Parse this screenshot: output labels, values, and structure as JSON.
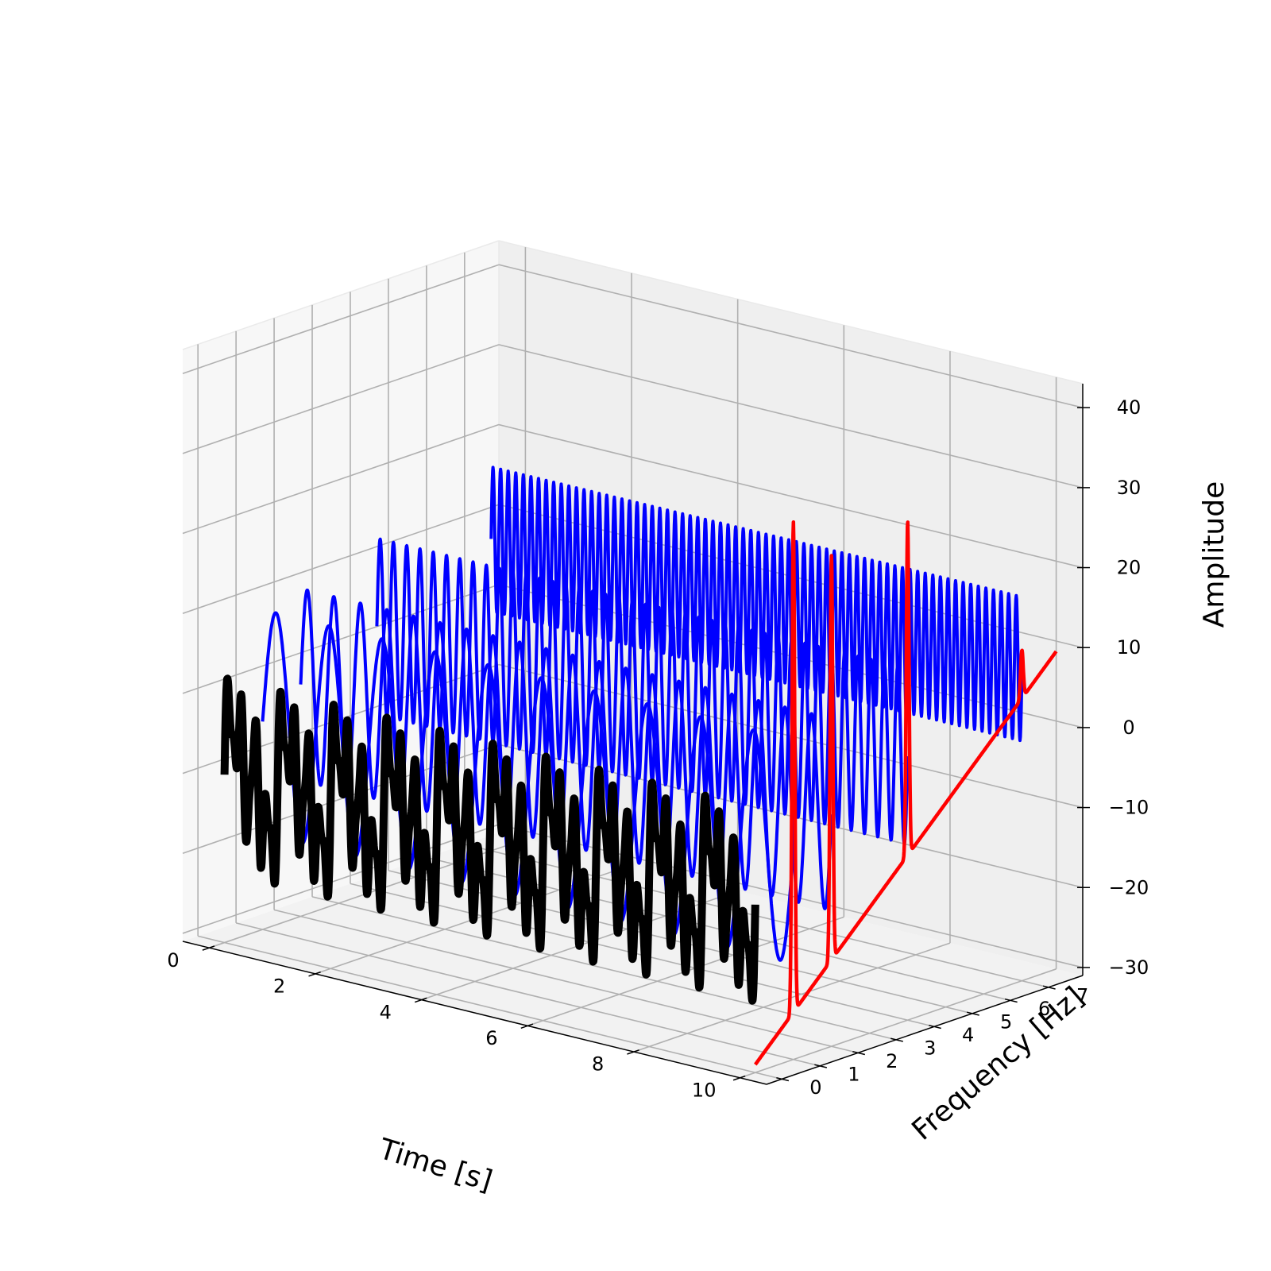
{
  "chart_data": {
    "type": "line",
    "projection": "3d",
    "xlabel": "Time [s]",
    "ylabel": "Frequency [Hz]",
    "zlabel": "Amplitude",
    "xlim": [
      -0.5,
      10.5
    ],
    "ylim": [
      -0.4,
      7.9
    ],
    "zlim": [
      -31,
      43
    ],
    "x_ticks": [
      0,
      2,
      4,
      6,
      8,
      10
    ],
    "y_ticks": [
      0,
      1,
      2,
      3,
      4,
      5,
      6,
      7
    ],
    "z_ticks": [
      -30,
      -20,
      -10,
      0,
      10,
      20,
      30,
      40
    ],
    "x_tick_labels": [
      "0",
      "2",
      "4",
      "6",
      "8",
      "10"
    ],
    "y_tick_labels": [
      "0",
      "1",
      "2",
      "3",
      "4",
      "5",
      "6",
      "7"
    ],
    "z_tick_labels": [
      "−30",
      "−20",
      "−10",
      "0",
      "10",
      "20",
      "30",
      "40"
    ],
    "grid": true,
    "colors": {
      "time_signal": "#000000",
      "components": "#0000ff",
      "spectrum": "#ff0000"
    },
    "time_signal": {
      "y": 0,
      "t_range": [
        0,
        10
      ],
      "components": [
        {
          "freq_hz": 1,
          "amplitude": 5
        },
        {
          "freq_hz": 2,
          "amplitude": 4
        },
        {
          "freq_hz": 4,
          "amplitude": 6
        },
        {
          "freq_hz": 7,
          "amplitude": 3
        }
      ],
      "offset": -10,
      "color": "#000000"
    },
    "component_waves": [
      {
        "y": 1,
        "freq_hz": 1,
        "amplitude": 14,
        "offset": -5
      },
      {
        "y": 2,
        "freq_hz": 2,
        "amplitude": 12,
        "offset": -2
      },
      {
        "y": 4,
        "freq_hz": 4,
        "amplitude": 11,
        "offset": 2
      },
      {
        "y": 7,
        "freq_hz": 7,
        "amplitude": 9,
        "offset": 8
      }
    ],
    "spectrum": {
      "x": 10,
      "baseline_slope_per_hz": 4.9,
      "baseline_start": -30,
      "peaks": [
        {
          "freq_hz": 1,
          "height": 43
        },
        {
          "freq_hz": 2,
          "height": 36
        },
        {
          "freq_hz": 4,
          "height": 36
        },
        {
          "freq_hz": 7,
          "height": 11
        }
      ],
      "color": "#ff0000"
    }
  }
}
